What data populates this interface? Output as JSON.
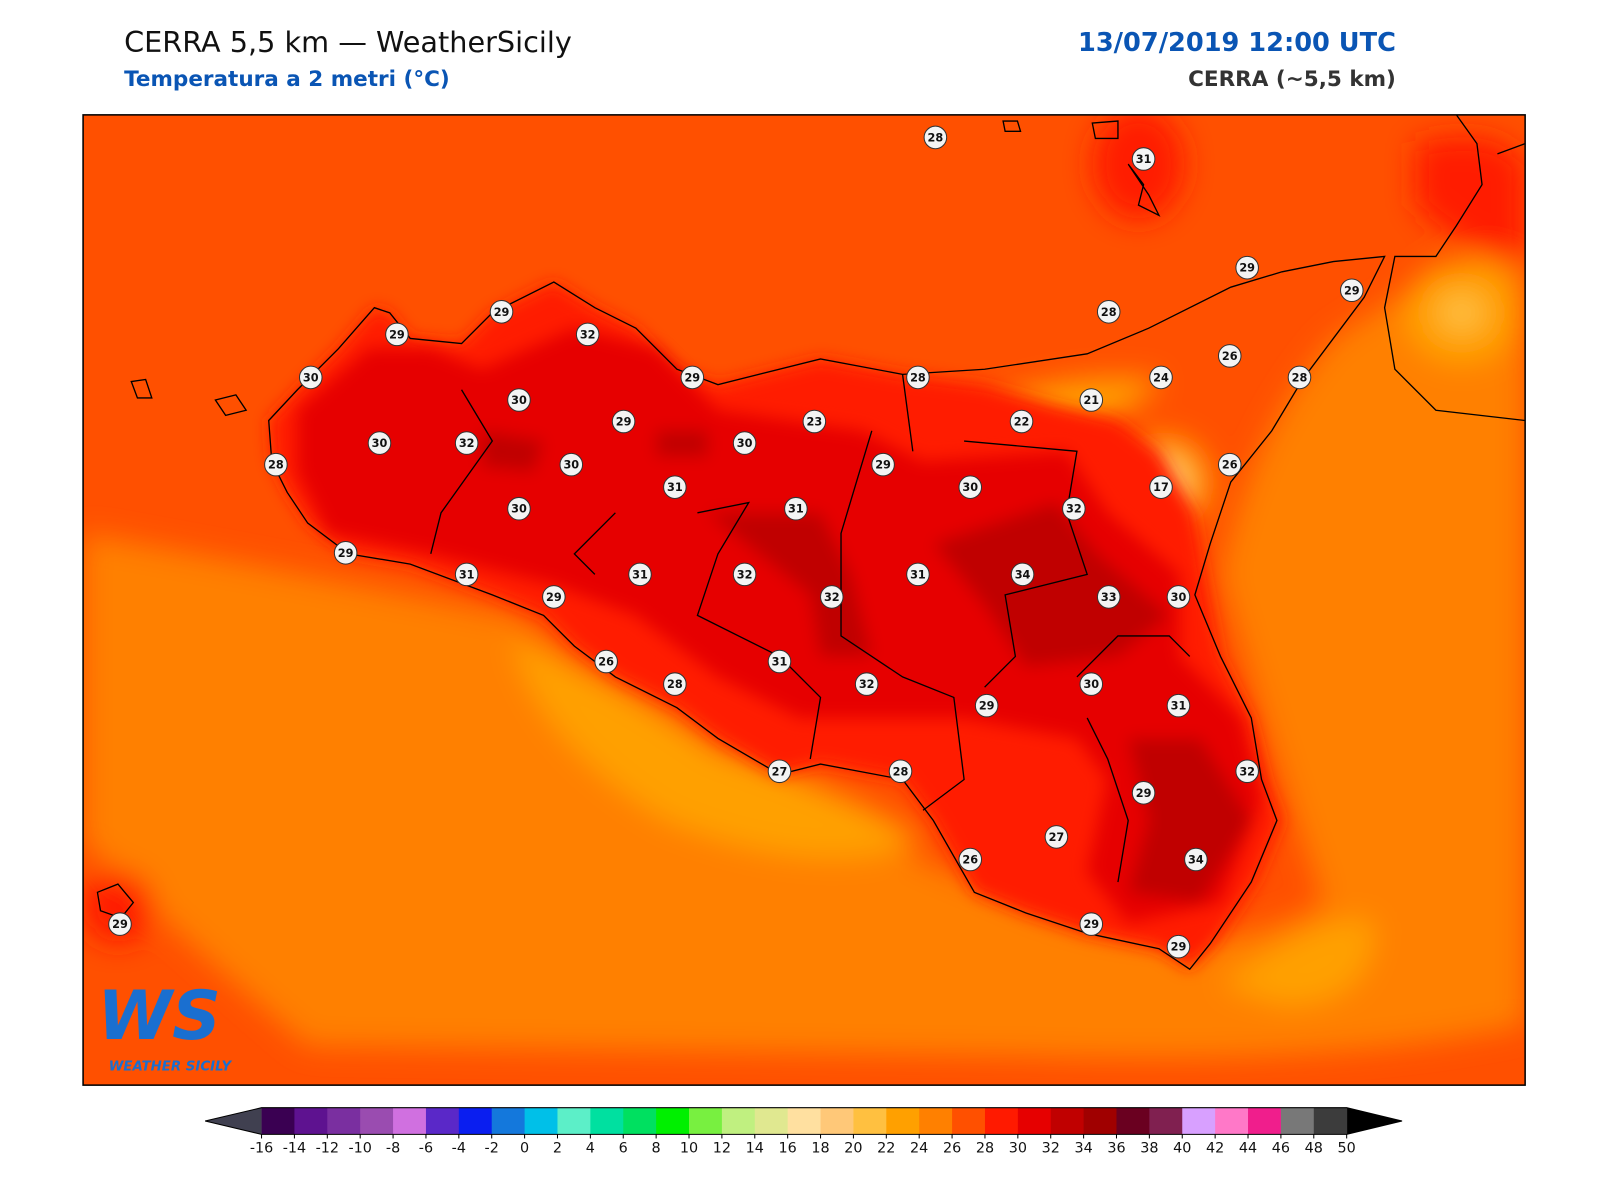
{
  "header": {
    "title": "CERRA 5,5 km — WeatherSicily",
    "subtitle": "Temperatura a 2 metri (°C)",
    "datetime": "13/07/2019 12:00 UTC",
    "model": "CERRA (~5,5 km)"
  },
  "stations": [
    28,
    31,
    29,
    29,
    29,
    32,
    29,
    28,
    26,
    30,
    29,
    28,
    24,
    28,
    30,
    21,
    29,
    23,
    22,
    30,
    32,
    30,
    28,
    30,
    29,
    26,
    31,
    30,
    17,
    30,
    31,
    32,
    29,
    31,
    31,
    32,
    31,
    34,
    29,
    32,
    33,
    30,
    26,
    31,
    28,
    32,
    30,
    29,
    31,
    27,
    28,
    32,
    29,
    27,
    26,
    34,
    29,
    29,
    29
  ],
  "colorbar": {
    "ticks": [
      -16,
      -14,
      -12,
      -10,
      -8,
      -6,
      -4,
      -2,
      0,
      2,
      4,
      6,
      8,
      10,
      12,
      14,
      16,
      18,
      20,
      22,
      24,
      26,
      28,
      30,
      32,
      34,
      36,
      38,
      40,
      42,
      44,
      46,
      48,
      50
    ],
    "colors": [
      "#3a0052",
      "#5e1290",
      "#7a2fa0",
      "#9a4cb0",
      "#d070e0",
      "#5a28c8",
      "#0a1ef0",
      "#1478dc",
      "#00c0e8",
      "#5cefc8",
      "#00e0a0",
      "#00e060",
      "#00f000",
      "#78f040",
      "#c0f080",
      "#e0e890",
      "#ffe0a0",
      "#ffc878",
      "#ffc040",
      "#ffa000",
      "#ff8000",
      "#ff5000",
      "#ff1a00",
      "#e60000",
      "#c00000",
      "#a00000",
      "#6a0020",
      "#802050",
      "#d8a0ff",
      "#ff78c8",
      "#f01e8c",
      "#787878",
      "#3c3c3c"
    ],
    "under_color": "#404050",
    "over_color": "#000000"
  },
  "logo": {
    "mark": "WS",
    "text": "WEATHER SICILY"
  }
}
